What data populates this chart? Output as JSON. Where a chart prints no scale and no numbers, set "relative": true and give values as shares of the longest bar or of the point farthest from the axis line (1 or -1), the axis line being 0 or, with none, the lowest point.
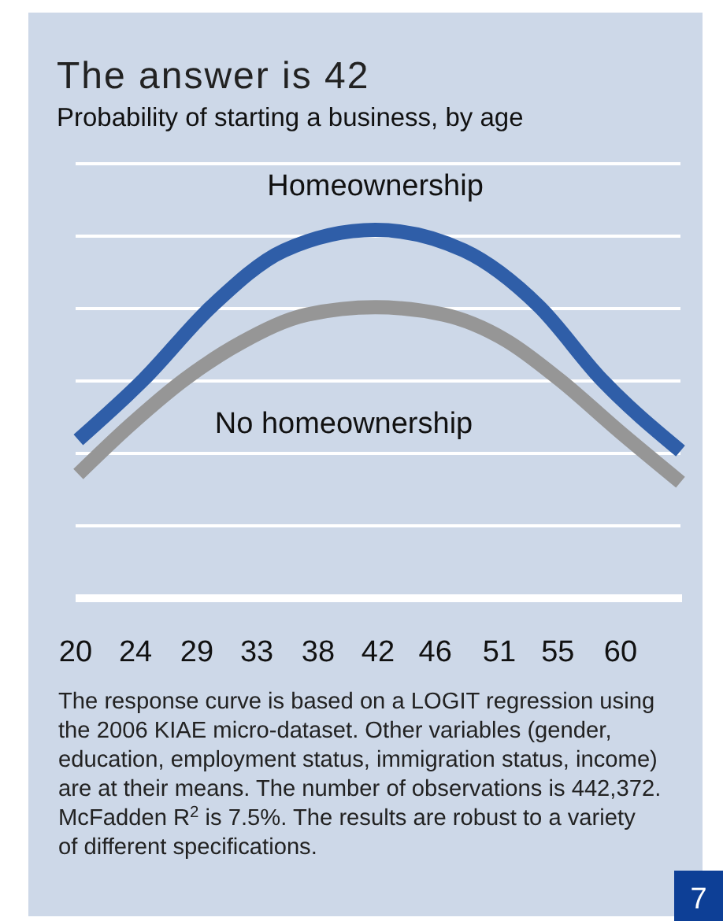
{
  "chart_data": {
    "type": "line",
    "title": "The answer is 42",
    "subtitle": "Probability of starting a business, by age",
    "relative": true,
    "grid": true,
    "marker": "none",
    "line_style": "solid",
    "xlim": [
      20,
      64.4
    ],
    "xticks": [
      20,
      {
        "value": 24.4,
        "label": "24"
      },
      {
        "value": 28.9,
        "label": "29"
      },
      {
        "value": 33.3,
        "label": "33"
      },
      {
        "value": 37.8,
        "label": "38"
      },
      {
        "value": 42.2,
        "label": "42"
      },
      {
        "value": 46.4,
        "label": "46"
      },
      {
        "value": 51.1,
        "label": "51"
      },
      {
        "value": 55.4,
        "label": "55"
      },
      60
    ],
    "series": [
      {
        "name": "Homeownership",
        "color": "#2f5ea8",
        "x": [
          20.2,
          25,
          30,
          35.3,
          42,
          48.5,
          54,
          58.6,
          64.4
        ],
        "values": [
          0.43,
          0.594,
          0.793,
          0.944,
          1.0,
          0.944,
          0.793,
          0.594,
          0.4
        ]
      },
      {
        "name": "No homeownership",
        "color": "#969696",
        "x": [
          20.2,
          24,
          28,
          32.2,
          37,
          42,
          47,
          51.6,
          55.5,
          60,
          64.4
        ],
        "values": [
          0.337,
          0.47,
          0.594,
          0.695,
          0.77,
          0.79,
          0.77,
          0.7,
          0.594,
          0.45,
          0.315
        ]
      }
    ],
    "annotations": [
      "The response curve is based on a LOGIT regression using the 2006 KIAE micro-dataset. Other variables (gender, education, employment status, immigration status, income) are at their means. The number of observations is 442,372. McFadden R$^{2}$ is 7.5%. The results are robust to a variety of different specifications.",
      "7"
    ]
  }
}
